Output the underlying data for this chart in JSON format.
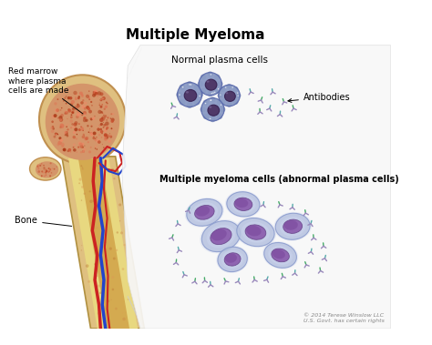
{
  "title": "Multiple Myeloma",
  "title_fontsize": 11,
  "title_fontweight": "bold",
  "background_color": "#ffffff",
  "label_red_marrow": "Red marrow\nwhere plasma\ncells are made",
  "label_bone": "Bone",
  "label_normal": "Normal plasma cells",
  "label_antibodies": "Antibodies",
  "label_myeloma": "Multiple myeloma cells (abnormal plasma cells)",
  "copyright": "© 2014 Terese Winslow LLC\nU.S. Govt. has certain rights",
  "normal_cell_outer": "#7788bb",
  "normal_cell_inner": "#aabbdd",
  "normal_nucleus": "#5a3a5a",
  "myeloma_cell_outer": "#8899cc",
  "myeloma_cell_inner": "#c5cce8",
  "myeloma_nucleus": "#7a4a7a",
  "antibody_teal": "#55aaaa",
  "antibody_purple": "#9988bb",
  "antibody_green": "#44aa66",
  "bone_head_fill": "#d4956a",
  "bone_cortex": "#dfc080",
  "bone_shaft_fill": "#e8d090",
  "bone_marrow_fill": "#c8a050",
  "vessel_red": "#cc2222",
  "vessel_blue": "#2244cc"
}
